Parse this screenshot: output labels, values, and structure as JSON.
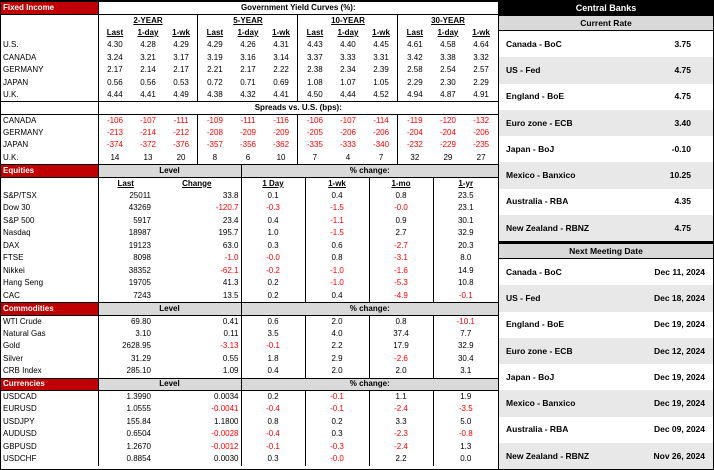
{
  "colors": {
    "section_header_bg": "#C00000",
    "section_header_text": "#FFFFFF",
    "central_banks_bg": "#000000",
    "header_gray": "#D9D9D9",
    "alt_row_gray": "#E8E8E8",
    "negative": "#FF0000",
    "border": "#000000"
  },
  "fixed_income": {
    "section_label": "Fixed Income",
    "title": "Government Yield Curves (%):",
    "maturities": [
      "2-YEAR",
      "5-YEAR",
      "10-YEAR",
      "30-YEAR"
    ],
    "subheaders": [
      "Last",
      "1-day",
      "1-wk"
    ],
    "yield_rows": [
      {
        "label": "U.S.",
        "values": [
          "4.30",
          "4.28",
          "4.29",
          "4.29",
          "4.26",
          "4.31",
          "4.43",
          "4.40",
          "4.45",
          "4.61",
          "4.58",
          "4.64"
        ]
      },
      {
        "label": "CANADA",
        "values": [
          "3.24",
          "3.21",
          "3.17",
          "3.19",
          "3.16",
          "3.14",
          "3.37",
          "3.33",
          "3.31",
          "3.42",
          "3.38",
          "3.32"
        ]
      },
      {
        "label": "GERMANY",
        "values": [
          "2.17",
          "2.14",
          "2.17",
          "2.21",
          "2.17",
          "2.22",
          "2.38",
          "2.34",
          "2.39",
          "2.58",
          "2.54",
          "2.57"
        ]
      },
      {
        "label": "JAPAN",
        "values": [
          "0.56",
          "0.56",
          "0.53",
          "0.72",
          "0.71",
          "0.69",
          "1.08",
          "1.07",
          "1.05",
          "2.29",
          "2.30",
          "2.29"
        ]
      },
      {
        "label": "U.K.",
        "values": [
          "4.44",
          "4.41",
          "4.49",
          "4.38",
          "4.32",
          "4.41",
          "4.50",
          "4.44",
          "4.52",
          "4.94",
          "4.87",
          "4.91"
        ]
      }
    ],
    "spreads_title": "Spreads vs. U.S. (bps):",
    "spread_rows": [
      {
        "label": "CANADA",
        "values": [
          "-106",
          "-107",
          "-111",
          "-109",
          "-111",
          "-116",
          "-106",
          "-107",
          "-114",
          "-119",
          "-120",
          "-132"
        ]
      },
      {
        "label": "GERMANY",
        "values": [
          "-213",
          "-214",
          "-212",
          "-208",
          "-209",
          "-209",
          "-205",
          "-206",
          "-206",
          "-204",
          "-204",
          "-206"
        ]
      },
      {
        "label": "JAPAN",
        "values": [
          "-374",
          "-372",
          "-376",
          "-357",
          "-356",
          "-362",
          "-335",
          "-333",
          "-340",
          "-232",
          "-229",
          "-235"
        ]
      },
      {
        "label": "U.K.",
        "values": [
          "14",
          "13",
          "20",
          "8",
          "6",
          "10",
          "7",
          "4",
          "7",
          "32",
          "29",
          "27"
        ]
      }
    ]
  },
  "equities": {
    "section_label": "Equities",
    "level_label": "Level",
    "pct_label": "% change:",
    "columns": [
      "Last",
      "Change",
      "1 Day",
      "1-wk",
      "1-mo",
      "1-yr"
    ],
    "rows": [
      {
        "label": "S&P/TSX",
        "values": [
          "25011",
          "33.8",
          "0.1",
          "0.4",
          "0.8",
          "23.5"
        ]
      },
      {
        "label": "Dow 30",
        "values": [
          "43269",
          "-120.7",
          "-0.3",
          "-1.5",
          "-0.0",
          "23.1"
        ]
      },
      {
        "label": "S&P 500",
        "values": [
          "5917",
          "23.4",
          "0.4",
          "-1.1",
          "0.9",
          "30.1"
        ]
      },
      {
        "label": "Nasdaq",
        "values": [
          "18987",
          "195.7",
          "1.0",
          "-1.5",
          "2.7",
          "32.9"
        ]
      },
      {
        "label": "DAX",
        "values": [
          "19123",
          "63.0",
          "0.3",
          "0.6",
          "-2.7",
          "20.3"
        ]
      },
      {
        "label": "FTSE",
        "values": [
          "8098",
          "-1.0",
          "-0.0",
          "0.8",
          "-3.1",
          "8.0"
        ]
      },
      {
        "label": "Nikkei",
        "values": [
          "38352",
          "-62.1",
          "-0.2",
          "-1.0",
          "-1.6",
          "14.9"
        ]
      },
      {
        "label": "Hang Seng",
        "values": [
          "19705",
          "41.3",
          "0.2",
          "-1.0",
          "-5.3",
          "10.8"
        ]
      },
      {
        "label": "CAC",
        "values": [
          "7243",
          "13.5",
          "0.2",
          "0.4",
          "-4.9",
          "-0.1"
        ]
      }
    ]
  },
  "commodities": {
    "section_label": "Commodities",
    "level_label": "Level",
    "pct_label": "% change:",
    "rows": [
      {
        "label": "WTI Crude",
        "values": [
          "69.80",
          "0.41",
          "0.6",
          "2.0",
          "0.8",
          "-10.1"
        ]
      },
      {
        "label": "Natural Gas",
        "values": [
          "3.10",
          "0.11",
          "3.5",
          "4.0",
          "37.4",
          "7.7"
        ]
      },
      {
        "label": "Gold",
        "values": [
          "2628.95",
          "-3.13",
          "-0.1",
          "2.2",
          "17.9",
          "32.9"
        ]
      },
      {
        "label": "Silver",
        "values": [
          "31.29",
          "0.55",
          "1.8",
          "2.9",
          "-2.6",
          "30.4"
        ]
      },
      {
        "label": "CRB Index",
        "values": [
          "285.10",
          "1.09",
          "0.4",
          "2.0",
          "2.0",
          "3.1"
        ]
      }
    ]
  },
  "currencies": {
    "section_label": "Currencies",
    "level_label": "Level",
    "pct_label": "% change:",
    "rows": [
      {
        "label": "USDCAD",
        "values": [
          "1.3990",
          "0.0034",
          "0.2",
          "-0.1",
          "1.1",
          "1.9"
        ]
      },
      {
        "label": "EURUSD",
        "values": [
          "1.0555",
          "-0.0041",
          "-0.4",
          "-0.1",
          "-2.4",
          "-3.5"
        ]
      },
      {
        "label": "USDJPY",
        "values": [
          "155.84",
          "1.1800",
          "0.8",
          "0.2",
          "3.3",
          "5.0"
        ]
      },
      {
        "label": "AUDUSD",
        "values": [
          "0.6504",
          "-0.0028",
          "-0.4",
          "0.3",
          "-2.3",
          "-0.8"
        ]
      },
      {
        "label": "GBPUSD",
        "values": [
          "1.2670",
          "-0.0012",
          "-0.1",
          "-0.3",
          "-2.4",
          "1.3"
        ]
      },
      {
        "label": "USDCHF",
        "values": [
          "0.8854",
          "0.0030",
          "0.3",
          "-0.0",
          "2.2",
          "0.0"
        ]
      }
    ]
  },
  "central_banks": {
    "title": "Central Banks",
    "current_rate_label": "Current Rate",
    "rates": [
      {
        "label": "Canada - BoC",
        "value": "3.75"
      },
      {
        "label": "US - Fed",
        "value": "4.75"
      },
      {
        "label": "England - BoE",
        "value": "4.75"
      },
      {
        "label": "Euro zone - ECB",
        "value": "3.40"
      },
      {
        "label": "Japan - BoJ",
        "value": "-0.10"
      },
      {
        "label": "Mexico - Banxico",
        "value": "10.25"
      },
      {
        "label": "Australia - RBA",
        "value": "4.35"
      },
      {
        "label": "New Zealand - RBNZ",
        "value": "4.75"
      }
    ],
    "next_meeting_label": "Next Meeting Date",
    "meetings": [
      {
        "label": "Canada - BoC",
        "value": "Dec 11, 2024"
      },
      {
        "label": "US - Fed",
        "value": "Dec 18, 2024"
      },
      {
        "label": "England - BoE",
        "value": "Dec 19, 2024"
      },
      {
        "label": "Euro zone - ECB",
        "value": "Dec 12, 2024"
      },
      {
        "label": "Japan - BoJ",
        "value": "Dec 19, 2024"
      },
      {
        "label": "Mexico - Banxico",
        "value": "Dec 19, 2024"
      },
      {
        "label": "Australia - RBA",
        "value": "Dec 09, 2024"
      },
      {
        "label": "New Zealand - RBNZ",
        "value": "Nov 26, 2024"
      }
    ]
  }
}
